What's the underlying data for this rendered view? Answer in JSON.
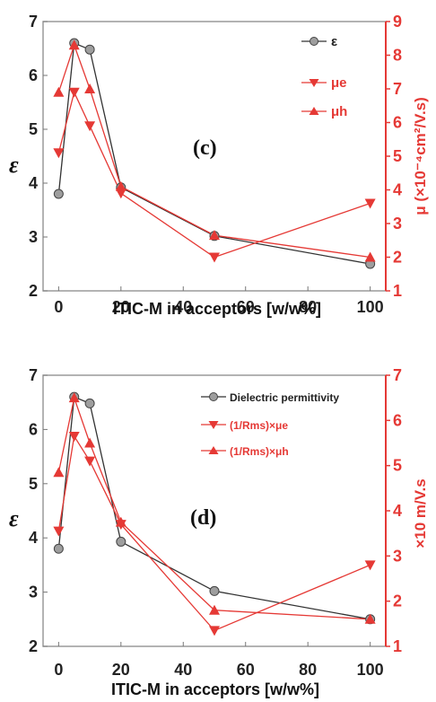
{
  "chart_data": [
    {
      "type": "line",
      "panel_label": "(c)",
      "xlabel": "ITIC-M in acceptors [w/w%]",
      "ylabel_left": "ε",
      "ylabel_right": "μ (×10⁻⁴cm²/V.s)",
      "x_ticks": [
        "0",
        "20",
        "40",
        "60",
        "80",
        "100"
      ],
      "y_left_ticks": [
        "2",
        "3",
        "4",
        "5",
        "6",
        "7"
      ],
      "y_right_ticks": [
        "1",
        "2",
        "3",
        "4",
        "5",
        "6",
        "7",
        "8",
        "9"
      ],
      "xlim": [
        -5,
        105
      ],
      "ylim_left": [
        2,
        7
      ],
      "ylim_right": [
        1,
        9
      ],
      "x": [
        0,
        5,
        10,
        20,
        50,
        100
      ],
      "series": [
        {
          "name": "ε",
          "axis": "left",
          "marker": "circle",
          "color": "#333333",
          "values": [
            3.8,
            6.6,
            6.48,
            3.92,
            3.02,
            2.5
          ]
        },
        {
          "name": "μe",
          "axis": "right",
          "marker": "triangle-down",
          "color": "#e53935",
          "values": [
            5.1,
            6.9,
            5.9,
            3.9,
            2.0,
            3.6
          ]
        },
        {
          "name": "μh",
          "axis": "right",
          "marker": "triangle-up",
          "color": "#e53935",
          "values": [
            6.9,
            8.3,
            7.0,
            4.1,
            2.65,
            2.0
          ]
        }
      ],
      "legend": [
        "ε",
        "μe",
        "μh"
      ],
      "legend_position": "top-right"
    },
    {
      "type": "line",
      "panel_label": "(d)",
      "xlabel": "ITIC-M in acceptors [w/w%]",
      "ylabel_left": "ε",
      "ylabel_right": "×10 m/V.s",
      "x_ticks": [
        "0",
        "20",
        "40",
        "60",
        "80",
        "100"
      ],
      "y_left_ticks": [
        "2",
        "3",
        "4",
        "5",
        "6",
        "7"
      ],
      "y_right_ticks": [
        "1",
        "2",
        "3",
        "4",
        "5",
        "6",
        "7"
      ],
      "xlim": [
        -5,
        105
      ],
      "ylim_left": [
        2,
        7
      ],
      "ylim_right": [
        1,
        7
      ],
      "x": [
        0,
        5,
        10,
        20,
        50,
        100
      ],
      "series": [
        {
          "name": "Dielectric permittivity",
          "axis": "left",
          "marker": "circle",
          "color": "#333333",
          "values": [
            3.8,
            6.6,
            6.48,
            3.93,
            3.02,
            2.5
          ]
        },
        {
          "name": "(1/Rms)×μe",
          "axis": "right",
          "marker": "triangle-down",
          "color": "#e53935",
          "values": [
            3.55,
            5.65,
            5.1,
            3.7,
            1.35,
            2.8
          ]
        },
        {
          "name": "(1/Rms)×μh",
          "axis": "right",
          "marker": "triangle-up",
          "color": "#e53935",
          "values": [
            4.85,
            6.5,
            5.5,
            3.75,
            1.8,
            1.6
          ]
        }
      ],
      "legend": [
        "Dielectric permittivity",
        "(1/Rms)×μe",
        "(1/Rms)×μh"
      ],
      "legend_position": "top-right"
    }
  ]
}
